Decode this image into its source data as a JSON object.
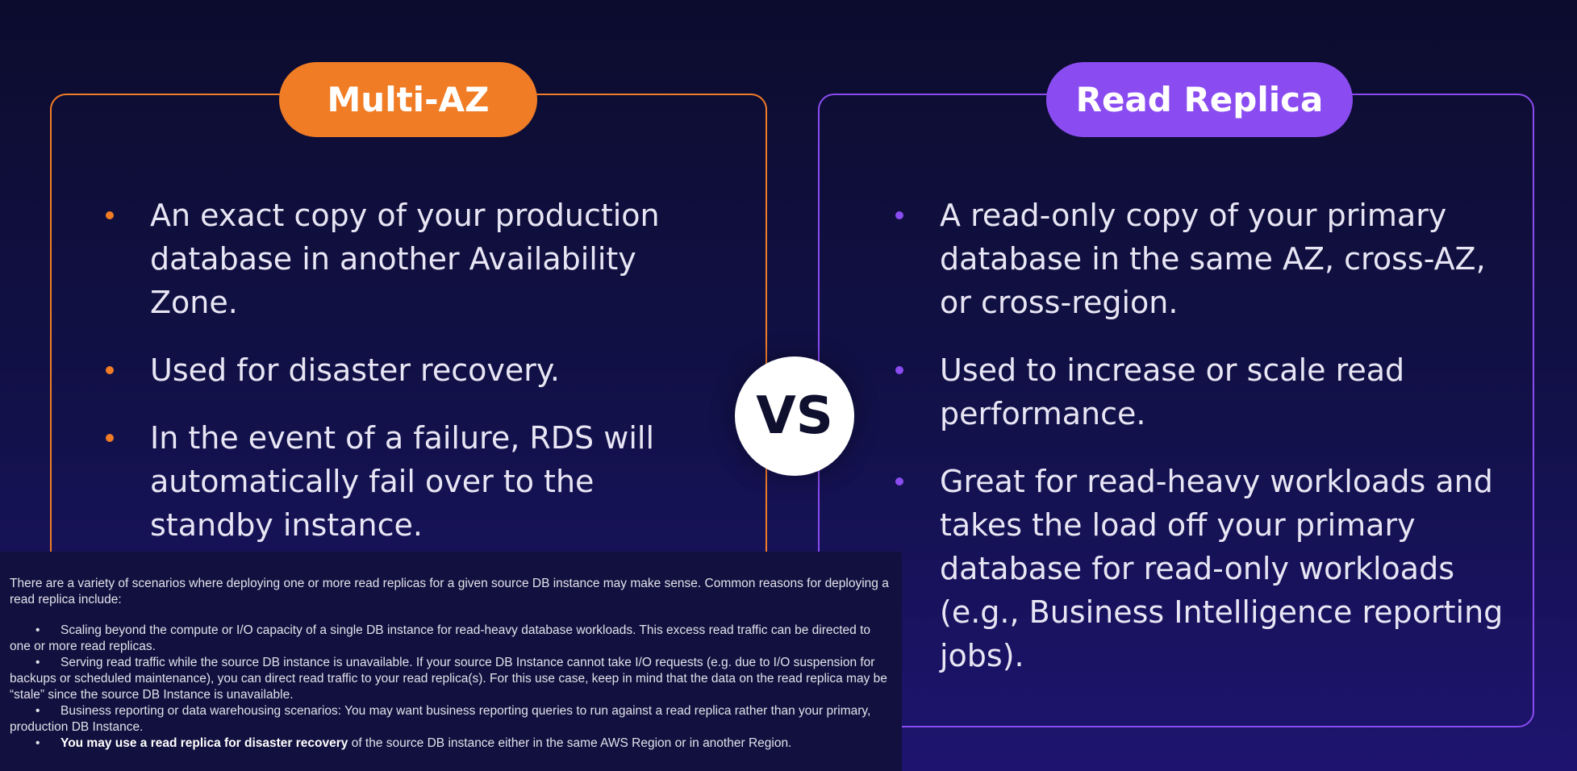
{
  "left_card": {
    "title": "Multi-AZ",
    "bullets": [
      "An exact copy of your production database in another Availability Zone.",
      "Used for disaster recovery.",
      "In the event of a failure, RDS will automatically fail over to the standby instance."
    ]
  },
  "vs_label": "VS",
  "right_card": {
    "title": "Read Replica",
    "bullets": [
      "A read-only copy of your primary database in the same AZ, cross-AZ, or cross-region.",
      "Used to increase or scale read performance.",
      "Great for read-heavy workloads and takes the load off your primary database for read-only workloads (e.g., Business Intelligence reporting jobs)."
    ]
  },
  "overlay": {
    "intro": "There are a variety of scenarios where deploying one or more read replicas for a given source DB instance may make sense. Common reasons for deploying a read replica include:",
    "bullet_symbol": "•",
    "items": [
      "Scaling beyond the compute or I/O capacity of a single DB instance for read-heavy database workloads. This excess read traffic can be directed to one or more read replicas.",
      "Serving read traffic while the source DB instance is unavailable. If your source DB Instance cannot take I/O requests (e.g. due to I/O suspension for backups or scheduled maintenance), you can direct read traffic to your read replica(s). For this use case, keep in mind that the data on the read replica may be “stale” since the source DB Instance is unavailable.",
      "Business reporting or data warehousing scenarios: You may want business reporting queries to run against a read replica rather than your primary, production DB Instance."
    ],
    "last_item_bold": "You may use a read replica for disaster recovery",
    "last_item_rest": " of the source DB instance either in the same AWS Region or in another Region."
  },
  "colors": {
    "accent_left": "#f07c25",
    "accent_right": "#8a4cf0",
    "background": "#12114a"
  }
}
